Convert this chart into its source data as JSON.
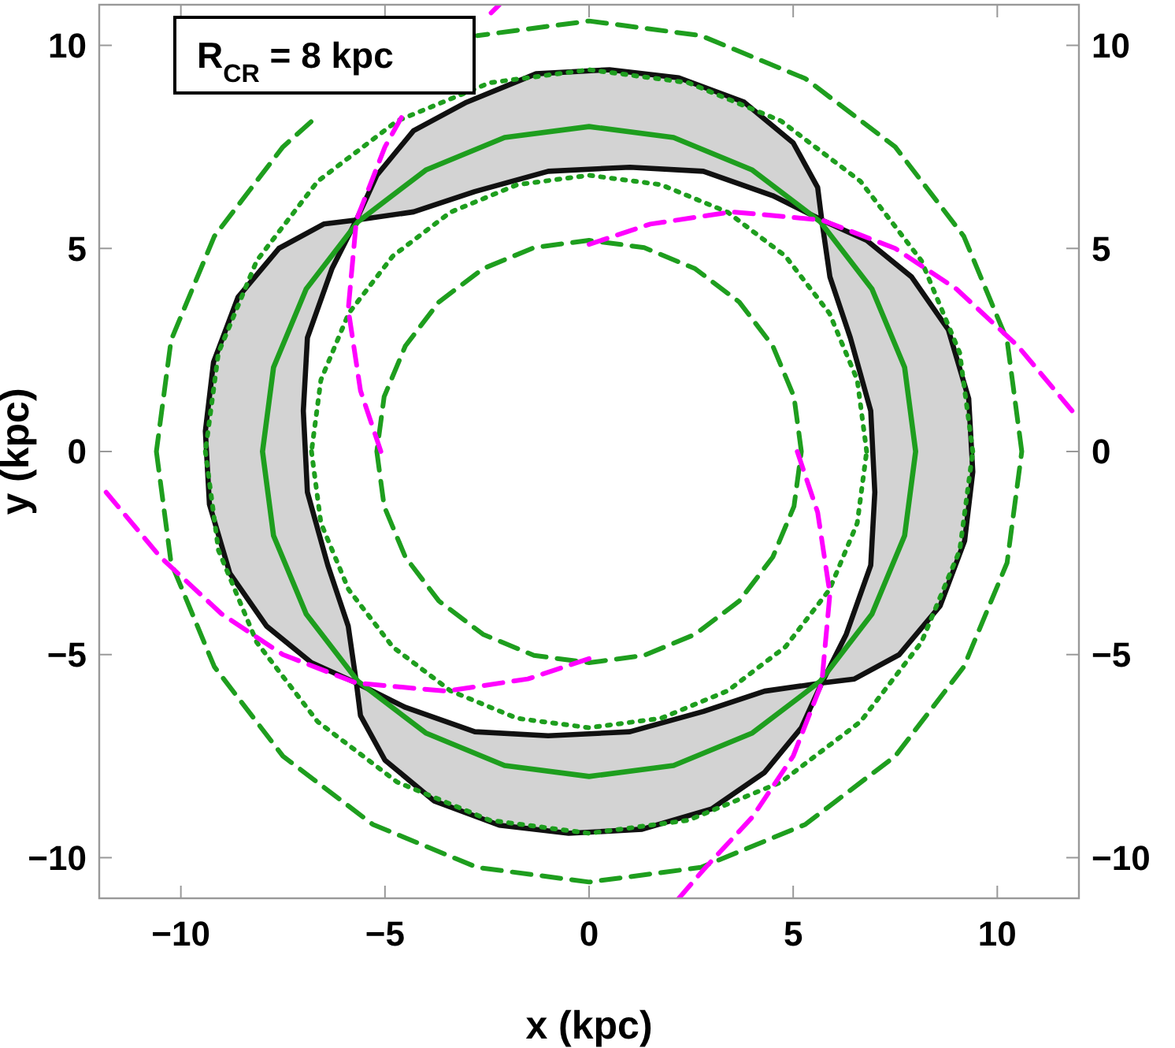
{
  "chart_data": {
    "type": "line",
    "xlabel": "x (kpc)",
    "ylabel": "y (kpc)",
    "annotations": [
      "R$_{CR}$ = 8 kpc"
    ],
    "xlim": [
      -12,
      12
    ],
    "ylim": [
      -11,
      11
    ],
    "y2lim": [
      -11,
      11
    ],
    "xticks": [
      {
        "value": -10,
        "label": "−10"
      },
      {
        "value": -5,
        "label": "−5"
      },
      0,
      5,
      10
    ],
    "yticks": [
      {
        "value": -10,
        "label": "−10"
      },
      {
        "value": -5,
        "label": "−5"
      },
      0,
      5,
      10
    ],
    "y2ticks": [
      {
        "value": -10,
        "label": "−10"
      },
      {
        "value": -5,
        "label": "−5"
      },
      0,
      5,
      10
    ],
    "grid": false,
    "series": [
      {
        "type": "area",
        "color": "#d3d3d3",
        "x": [
          5.7,
          6.8,
          7.9,
          8.8,
          9.3,
          9.4,
          9.2,
          8.6,
          7.6,
          6.5,
          5.7,
          6.3,
          6.9,
          7.0,
          6.9,
          6.4,
          5.9,
          5.7,
          null,
          -5.7,
          -5.2,
          -4.3,
          -3,
          -1.3,
          0.5,
          2.2,
          3.8,
          5.0,
          5.6,
          5.7,
          4.5,
          2.8,
          1,
          -1,
          -2.8,
          -4.3,
          -5.7,
          null,
          -5.7,
          -6.8,
          -7.9,
          -8.8,
          -9.3,
          -9.4,
          -9.2,
          -8.6,
          -7.6,
          -6.5,
          -5.7,
          -6.3,
          -6.9,
          -7.0,
          -6.9,
          -6.4,
          -5.9,
          -5.7,
          null,
          5.7,
          5.2,
          4.3,
          3,
          1.3,
          -0.5,
          -2.2,
          -3.8,
          -5.0,
          -5.6,
          -5.7,
          -4.5,
          -2.8,
          -1,
          1,
          2.8,
          4.3,
          5.7
        ],
        "values": [
          5.7,
          5.2,
          4.3,
          3,
          1.3,
          -0.5,
          -2.2,
          -3.8,
          -5.0,
          -5.6,
          -5.7,
          -4.5,
          -2.8,
          -1,
          1,
          2.8,
          4.3,
          5.7,
          null,
          5.7,
          6.8,
          7.9,
          8.6,
          9.3,
          9.4,
          9.2,
          8.6,
          7.6,
          6.5,
          5.7,
          6.3,
          6.9,
          7.0,
          6.9,
          6.4,
          5.9,
          5.7,
          null,
          -5.7,
          -5.2,
          -4.3,
          -3,
          -1.3,
          0.5,
          2.2,
          3.8,
          5.0,
          5.6,
          5.7,
          4.5,
          2.8,
          1,
          -1,
          -2.8,
          -4.3,
          -5.7,
          null,
          -5.7,
          -6.8,
          -7.9,
          -8.8,
          -9.3,
          -9.4,
          -9.2,
          -8.6,
          -7.6,
          -6.5,
          -5.7,
          -6.3,
          -6.9,
          -7.0,
          -6.9,
          -6.4,
          -5.9,
          -5.7
        ]
      },
      {
        "type": "line",
        "color": "#1e9e1e",
        "line_style": "dashed",
        "x": [
          5.2,
          5.02,
          4.5,
          3.68,
          2.6,
          1.35,
          0,
          -1.35,
          -2.6,
          -3.68,
          -4.5,
          -5.02,
          -5.2,
          null,
          -5.2,
          -5.02,
          -4.5,
          -3.68,
          -2.6,
          -1.35,
          0,
          1.35,
          2.6,
          3.68,
          4.5,
          5.02,
          5.2
        ],
        "values": [
          0,
          1.35,
          2.6,
          3.68,
          4.5,
          5.02,
          5.2,
          5.02,
          4.5,
          3.68,
          2.6,
          1.35,
          0,
          null,
          0,
          -1.35,
          -2.6,
          -3.68,
          -4.5,
          -5.02,
          -5.2,
          -5.02,
          -4.5,
          -3.68,
          -2.6,
          -1.35,
          0
        ]
      },
      {
        "type": "line",
        "color": "#1e9e1e",
        "line_style": "dotted",
        "x": [
          6.8,
          6.57,
          5.89,
          4.81,
          3.4,
          1.76,
          0,
          -1.76,
          -3.4,
          -4.81,
          -5.89,
          -6.57,
          -6.8,
          null,
          -6.8,
          -6.57,
          -5.89,
          -4.81,
          -3.4,
          -1.76,
          0,
          1.76,
          3.4,
          4.81,
          5.89,
          6.57,
          6.8
        ],
        "values": [
          0,
          1.76,
          3.4,
          4.81,
          5.89,
          6.57,
          6.8,
          6.57,
          5.89,
          4.81,
          3.4,
          1.76,
          0,
          null,
          0,
          -1.76,
          -3.4,
          -4.81,
          -5.89,
          -6.57,
          -6.8,
          -6.57,
          -5.89,
          -4.81,
          -3.4,
          -1.76,
          0
        ]
      },
      {
        "type": "line",
        "color": "#1e9e1e",
        "line_style": "solid",
        "x": [
          8,
          7.73,
          6.93,
          5.66,
          4,
          2.07,
          0,
          -2.07,
          -4,
          -5.66,
          -6.93,
          -7.73,
          -8,
          null,
          -8,
          -7.73,
          -6.93,
          -5.66,
          -4,
          -2.07,
          0,
          2.07,
          4,
          5.66,
          6.93,
          7.73,
          8
        ],
        "values": [
          0,
          2.07,
          4,
          5.66,
          6.93,
          7.73,
          8,
          7.73,
          6.93,
          5.66,
          4,
          2.07,
          0,
          null,
          0,
          -2.07,
          -4,
          -5.66,
          -6.93,
          -7.73,
          -8,
          -7.73,
          -6.93,
          -5.66,
          -4,
          -2.07,
          0
        ]
      },
      {
        "type": "line",
        "color": "#1e9e1e",
        "line_style": "dotted",
        "x": [
          9.4,
          9.08,
          8.14,
          6.65,
          4.7,
          2.43,
          0,
          -2.43,
          -4.7,
          -6.65,
          -8.14,
          -9.08,
          -9.4,
          null,
          -9.4,
          -9.08,
          -8.14,
          -6.65,
          -4.7,
          -2.43,
          0,
          2.43,
          4.7,
          6.65,
          8.14,
          9.08,
          9.4
        ],
        "values": [
          0,
          2.43,
          4.7,
          6.65,
          8.14,
          9.08,
          9.4,
          9.08,
          8.14,
          6.65,
          4.7,
          2.43,
          0,
          null,
          0,
          -2.43,
          -4.7,
          -6.65,
          -8.14,
          -9.08,
          -9.4,
          -9.08,
          -8.14,
          -6.65,
          -4.7,
          -2.43,
          0
        ]
      },
      {
        "type": "line",
        "color": "#1e9e1e",
        "line_style": "dashed",
        "x": [
          10.6,
          10.24,
          9.18,
          7.5,
          5.3,
          2.74,
          0,
          -2.74,
          null,
          -6.81,
          -7.5,
          -9.18,
          -10.24,
          -10.6,
          null,
          -10.6,
          -10.24,
          -9.18,
          -7.5,
          -5.3,
          -2.74,
          0,
          2.74,
          5.3,
          7.5,
          9.18,
          10.24,
          10.6
        ],
        "values": [
          0,
          2.74,
          5.3,
          7.5,
          9.18,
          10.24,
          10.6,
          10.24,
          null,
          8.12,
          7.5,
          5.3,
          2.74,
          0,
          null,
          0,
          -2.74,
          -5.3,
          -7.5,
          -9.18,
          -10.24,
          -10.6,
          -10.24,
          -9.18,
          -7.5,
          -5.3,
          -2.74,
          0
        ]
      },
      {
        "type": "line",
        "color": "#ff00ff",
        "line_style": "dashed",
        "x": [
          0,
          1.5,
          3.5,
          5.7,
          7.5,
          9,
          10.5,
          12
        ],
        "values": [
          5.1,
          5.6,
          5.9,
          5.7,
          5.0,
          4.0,
          2.6,
          0.8
        ]
      },
      {
        "type": "line",
        "color": "#ff00ff",
        "line_style": "dashed",
        "x": [
          5.1,
          5.6,
          5.9,
          5.7,
          5,
          4,
          2.8,
          2.2
        ],
        "values": [
          0,
          -1.5,
          -3.5,
          -5.7,
          -7.5,
          -9,
          -10.3,
          -11
        ]
      },
      {
        "type": "line",
        "color": "#ff00ff",
        "line_style": "dashed",
        "x": [
          0,
          -1.5,
          -3.5,
          -5.7,
          -7.5,
          -9,
          -10.5,
          -12
        ],
        "values": [
          -5.1,
          -5.6,
          -5.9,
          -5.7,
          -5.0,
          -4.0,
          -2.6,
          -0.8
        ]
      },
      {
        "type": "line",
        "color": "#ff00ff",
        "line_style": "dashed",
        "x": [
          -5.1,
          -5.6,
          -5.9,
          -5.7,
          -5,
          -4.5,
          null,
          -2.4,
          -2.2
        ],
        "values": [
          0,
          1.5,
          3.5,
          5.7,
          7.5,
          8.4,
          null,
          10.8,
          11
        ]
      }
    ]
  }
}
